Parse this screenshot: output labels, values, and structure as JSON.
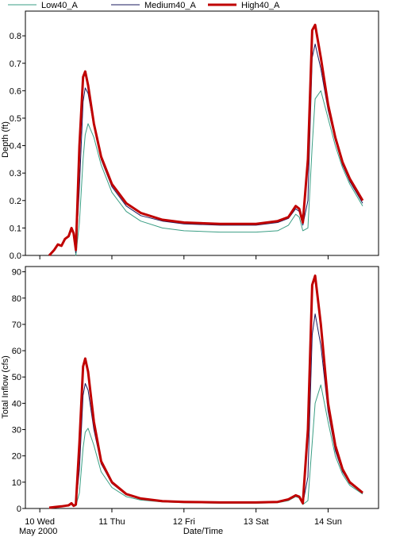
{
  "chart_data": [
    {
      "type": "line",
      "y_label": "Depth (ft)",
      "x": [
        0.13,
        0.2,
        0.25,
        0.3,
        0.35,
        0.4,
        0.44,
        0.47,
        0.5,
        0.55,
        0.6,
        0.63,
        0.67,
        0.75,
        0.85,
        1.0,
        1.2,
        1.4,
        1.7,
        2.0,
        2.5,
        3.0,
        3.3,
        3.45,
        3.55,
        3.6,
        3.65,
        3.72,
        3.78,
        3.82,
        3.9,
        4.0,
        4.1,
        4.2,
        4.3,
        4.48
      ],
      "xlim": [
        -0.2,
        4.7
      ],
      "ylim": [
        0,
        0.89
      ],
      "yticks": [
        {
          "value": 0,
          "label": "0.0"
        },
        0.1,
        0.2,
        0.3,
        0.4,
        0.5,
        0.6,
        0.7,
        0.8
      ],
      "series": [
        {
          "name": "Low40_A",
          "color": "#3a9e84",
          "values": [
            0,
            0.02,
            0.04,
            0.035,
            0.06,
            0.07,
            0.1,
            0.08,
            0,
            0.12,
            0.35,
            0.44,
            0.48,
            0.43,
            0.33,
            0.23,
            0.16,
            0.125,
            0.1,
            0.09,
            0.085,
            0.085,
            0.09,
            0.11,
            0.15,
            0.14,
            0.09,
            0.1,
            0.4,
            0.57,
            0.6,
            0.5,
            0.4,
            0.32,
            0.26,
            0.18
          ]
        },
        {
          "name": "Medium40_A",
          "color": "#1a1a5e",
          "values": [
            0,
            0.02,
            0.04,
            0.035,
            0.06,
            0.07,
            0.1,
            0.08,
            0.01,
            0.25,
            0.56,
            0.61,
            0.59,
            0.47,
            0.35,
            0.25,
            0.18,
            0.145,
            0.125,
            0.115,
            0.11,
            0.11,
            0.12,
            0.135,
            0.17,
            0.16,
            0.11,
            0.2,
            0.72,
            0.77,
            0.68,
            0.53,
            0.42,
            0.33,
            0.27,
            0.19
          ]
        },
        {
          "name": "High40_A",
          "color": "#c00000",
          "values": [
            0,
            0.02,
            0.04,
            0.035,
            0.06,
            0.07,
            0.1,
            0.08,
            0.02,
            0.4,
            0.65,
            0.67,
            0.62,
            0.48,
            0.36,
            0.26,
            0.19,
            0.155,
            0.13,
            0.12,
            0.115,
            0.115,
            0.125,
            0.14,
            0.18,
            0.17,
            0.12,
            0.35,
            0.82,
            0.84,
            0.72,
            0.55,
            0.43,
            0.34,
            0.28,
            0.2
          ]
        }
      ]
    },
    {
      "type": "line",
      "y_label": "Total Inflow (cfs)",
      "x_label": "Date/Time",
      "x_sublabel": "May 2000",
      "x": [
        0.13,
        0.2,
        0.25,
        0.3,
        0.35,
        0.4,
        0.44,
        0.47,
        0.5,
        0.55,
        0.6,
        0.63,
        0.67,
        0.75,
        0.85,
        1.0,
        1.2,
        1.4,
        1.7,
        2.0,
        2.5,
        3.0,
        3.3,
        3.45,
        3.55,
        3.6,
        3.65,
        3.72,
        3.78,
        3.82,
        3.9,
        4.0,
        4.1,
        4.2,
        4.3,
        4.48
      ],
      "xlim": [
        -0.2,
        4.7
      ],
      "ylim": [
        0,
        92
      ],
      "xticks": [
        {
          "value": 0,
          "label": "10 Wed"
        },
        {
          "value": 1,
          "label": "11 Thu"
        },
        {
          "value": 2,
          "label": "12 Fri"
        },
        {
          "value": 3,
          "label": "13 Sat"
        },
        {
          "value": 4,
          "label": "14 Sun"
        }
      ],
      "yticks": [
        0,
        10,
        20,
        30,
        40,
        50,
        60,
        70,
        80,
        90
      ],
      "series": [
        {
          "color": "#3a9e84",
          "values": [
            0.3,
            0.5,
            0.7,
            0.8,
            1,
            1.2,
            2,
            1,
            1,
            6,
            23,
            29,
            30.5,
            24,
            14,
            8,
            4.5,
            3.2,
            2.5,
            2.2,
            2,
            2,
            2.2,
            3,
            4.5,
            4,
            1.5,
            3,
            25,
            40,
            47,
            33,
            20,
            13,
            8.8,
            5.5
          ]
        },
        {
          "color": "#1a1a5e",
          "values": [
            0.3,
            0.5,
            0.7,
            0.8,
            1,
            1.2,
            2,
            1,
            1.2,
            15,
            43,
            47.5,
            45,
            30,
            17,
            9.5,
            5.2,
            3.6,
            2.7,
            2.4,
            2.2,
            2.2,
            2.4,
            3.3,
            4.8,
            4.3,
            1.8,
            12,
            66,
            74,
            62,
            37,
            22,
            14,
            9.5,
            5.8
          ]
        },
        {
          "color": "#c00000",
          "values": [
            0.3,
            0.5,
            0.7,
            0.8,
            1,
            1.2,
            2,
            1,
            1.5,
            25,
            54,
            57,
            52,
            33,
            18,
            10,
            5.5,
            3.8,
            2.8,
            2.5,
            2.3,
            2.3,
            2.5,
            3.5,
            5,
            4.5,
            2,
            30,
            85,
            88.5,
            70,
            40,
            24,
            15,
            10,
            6
          ]
        }
      ]
    }
  ]
}
